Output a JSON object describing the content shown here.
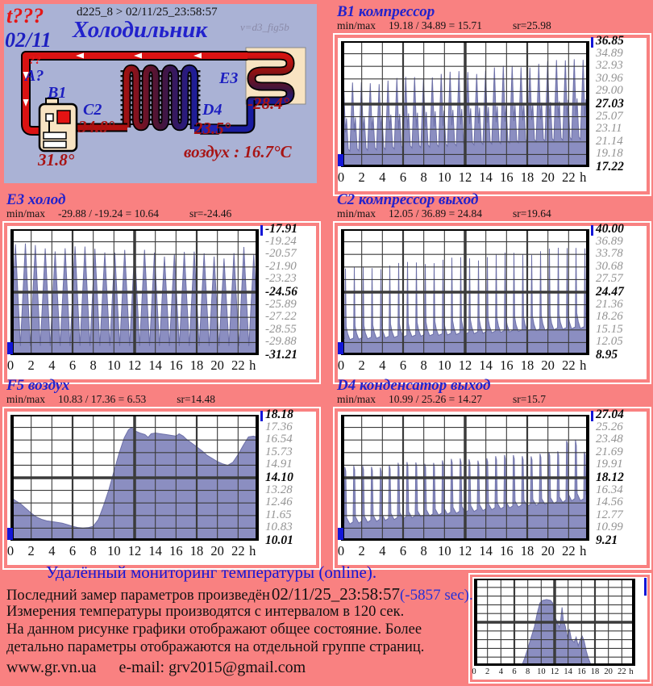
{
  "theme": {
    "page_bg": "#f98181",
    "diagram_bg": "#aab2d5",
    "series_fill": "#8b8ec1",
    "series_stroke": "#6d70a8",
    "grid_color": "#3b3b3b",
    "accent_blue": "#2222cc",
    "marker_blue": "#1316d8",
    "dark_red": "#a81414",
    "bright_red": "#e51717"
  },
  "diagram": {
    "t_query": "t???",
    "date": "02/11",
    "device_line": "d225_8  >  02/11/25_23:58:57",
    "title": "Холодильник",
    "version": "v=d3_fig5b",
    "sensor_q": "??",
    "sensor_a": "A?",
    "b1": "B1",
    "b1_temp": "31.8°",
    "c2": "C2",
    "c2_temp": "34.8°",
    "d4": "D4",
    "d4_temp": "23.5°",
    "e3": "E3",
    "e3_temp": "-28.4°",
    "air": "воздух : 16.7°C"
  },
  "chart_data": [
    {
      "id": "b1",
      "name": "B1 компрессор",
      "minmax_label": "min/max",
      "minmax": "19.18 / 34.89 = 15.71",
      "sr": "sr=25.98",
      "type": "area",
      "xlabel": "h",
      "xlim": [
        0,
        24
      ],
      "ylim": [
        17.22,
        36.85
      ],
      "x_labels": [
        "0",
        "2",
        "4",
        "6",
        "8",
        "10",
        "12",
        "14",
        "16",
        "18",
        "20",
        "22",
        "h"
      ],
      "y_ticks": [
        "36.85",
        "34.89",
        "32.93",
        "30.96",
        "29.00",
        "27.03",
        "25.07",
        "23.11",
        "21.14",
        "19.18",
        "17.22"
      ],
      "stats": {
        "min": 19.18,
        "max": 34.89,
        "diff": 15.71,
        "avg": 25.98
      },
      "series": {
        "mode": "cycles",
        "cycles": 28,
        "base": [
          19.3,
          21.2
        ],
        "peak": [
          30.2,
          34.5
        ],
        "bump": [
          22.6,
          0.6
        ],
        "shape": [
          [
            0,
            0.03
          ],
          [
            0.3,
            1
          ],
          [
            0.5,
            0.3
          ],
          [
            0.62,
            0.5
          ],
          [
            0.82,
            0.06
          ],
          [
            1,
            0.03
          ]
        ]
      }
    },
    {
      "id": "e3",
      "name": "E3 холод",
      "minmax_label": "min/max",
      "minmax": "-29.88 / -19.24 = 10.64",
      "sr": "sr=-24.46",
      "type": "area",
      "xlabel": "h",
      "xlim": [
        0,
        24
      ],
      "ylim": [
        -31.21,
        -17.91
      ],
      "x_labels": [
        "0",
        "2",
        "4",
        "6",
        "8",
        "10",
        "12",
        "14",
        "16",
        "18",
        "20",
        "22",
        "h"
      ],
      "y_ticks": [
        "-17.91",
        "-19.24",
        "-20.57",
        "-21.90",
        "-23.23",
        "-24.56",
        "-25.89",
        "-27.22",
        "-28.55",
        "-29.88",
        "-31.21"
      ],
      "stats": {
        "min": -29.88,
        "max": -19.24,
        "diff": 10.64,
        "avg": -24.46
      },
      "series": {
        "mode": "cycles",
        "cycles": 25,
        "base": [
          -30.25,
          -30.25
        ],
        "peak": [
          -19.35,
          -20.6
        ],
        "bump": [
          22.4,
          0.9
        ],
        "shape": [
          [
            0,
            0
          ],
          [
            0.5,
            1
          ],
          [
            1,
            0
          ]
        ]
      }
    },
    {
      "id": "c2",
      "name": "C2 компрессор выход",
      "minmax_label": "min/max",
      "minmax": "12.05 / 36.89 = 24.84",
      "sr": "sr=19.64",
      "type": "area",
      "xlabel": "h",
      "xlim": [
        0,
        24
      ],
      "ylim": [
        8.95,
        40.0
      ],
      "x_labels": [
        "0",
        "2",
        "4",
        "6",
        "8",
        "10",
        "12",
        "14",
        "16",
        "18",
        "20",
        "22",
        "h"
      ],
      "y_ticks": [
        "40.00",
        "36.89",
        "33.78",
        "30.68",
        "27.57",
        "24.47",
        "21.36",
        "18.26",
        "15.15",
        "12.05",
        "8.95"
      ],
      "stats": {
        "min": 12.05,
        "max": 36.89,
        "diff": 24.84,
        "avg": 19.64
      },
      "series": {
        "mode": "cycles",
        "cycles": 28,
        "base": [
          12.3,
          15.2
        ],
        "peak": [
          30.4,
          36.2
        ],
        "bump": [
          22.7,
          0.7
        ],
        "shape": [
          [
            0,
            0.02
          ],
          [
            0.42,
            0.04
          ],
          [
            0.5,
            1
          ],
          [
            0.58,
            0.2
          ],
          [
            0.75,
            0.1
          ],
          [
            1,
            0.02
          ]
        ]
      }
    },
    {
      "id": "f5",
      "name": "F5 воздух",
      "minmax_label": "min/max",
      "minmax": "10.83 / 17.36 = 6.53",
      "sr": "sr=14.48",
      "type": "area",
      "xlabel": "h",
      "xlim": [
        0,
        24
      ],
      "ylim": [
        10.01,
        18.18
      ],
      "x_labels": [
        "0",
        "2",
        "4",
        "6",
        "8",
        "10",
        "12",
        "14",
        "16",
        "18",
        "20",
        "22",
        "h"
      ],
      "y_ticks": [
        "18.18",
        "17.36",
        "16.54",
        "15.73",
        "14.91",
        "14.10",
        "13.28",
        "12.46",
        "11.65",
        "10.83",
        "10.01"
      ],
      "stats": {
        "min": 10.83,
        "max": 17.36,
        "diff": 6.53,
        "avg": 14.48
      },
      "series": {
        "mode": "points",
        "points": [
          [
            0,
            12.85
          ],
          [
            0.5,
            12.6
          ],
          [
            1,
            12.4
          ],
          [
            1.5,
            12.1
          ],
          [
            2,
            11.8
          ],
          [
            2.5,
            11.55
          ],
          [
            3,
            11.4
          ],
          [
            3.5,
            11.3
          ],
          [
            4,
            11.25
          ],
          [
            4.5,
            11.2
          ],
          [
            5,
            11.15
          ],
          [
            5.5,
            11.05
          ],
          [
            6,
            10.95
          ],
          [
            6.5,
            10.87
          ],
          [
            7,
            10.83
          ],
          [
            7.5,
            10.86
          ],
          [
            8,
            10.95
          ],
          [
            8.5,
            11.4
          ],
          [
            9,
            12.3
          ],
          [
            9.5,
            13.3
          ],
          [
            10,
            14.5
          ],
          [
            10.5,
            15.7
          ],
          [
            11,
            16.7
          ],
          [
            11.4,
            17.2
          ],
          [
            11.7,
            17.36
          ],
          [
            12,
            17.15
          ],
          [
            12.5,
            17.0
          ],
          [
            13,
            16.9
          ],
          [
            13.3,
            16.72
          ],
          [
            13.6,
            16.95
          ],
          [
            14,
            17.0
          ],
          [
            14.5,
            16.95
          ],
          [
            15,
            16.9
          ],
          [
            15.5,
            16.85
          ],
          [
            16,
            16.8
          ],
          [
            16.3,
            16.95
          ],
          [
            16.7,
            16.8
          ],
          [
            17,
            16.6
          ],
          [
            17.5,
            16.35
          ],
          [
            18,
            16.1
          ],
          [
            18.5,
            15.85
          ],
          [
            19,
            15.55
          ],
          [
            19.5,
            15.35
          ],
          [
            20,
            15.15
          ],
          [
            20.5,
            15.0
          ],
          [
            21,
            14.9
          ],
          [
            21.5,
            15.1
          ],
          [
            22,
            15.6
          ],
          [
            22.5,
            16.2
          ],
          [
            23,
            16.75
          ],
          [
            23.5,
            16.8
          ],
          [
            24,
            16.7
          ]
        ]
      }
    },
    {
      "id": "d4",
      "name": "D4 конденсатор выход",
      "minmax_label": "min/max",
      "minmax": "10.99 / 25.26 = 14.27",
      "sr": "sr=15.7",
      "type": "area",
      "xlabel": "h",
      "xlim": [
        0,
        24
      ],
      "ylim": [
        9.21,
        27.04
      ],
      "x_labels": [
        "0",
        "2",
        "4",
        "6",
        "8",
        "10",
        "12",
        "14",
        "16",
        "18",
        "20",
        "22",
        "h"
      ],
      "y_ticks": [
        "27.04",
        "25.26",
        "23.48",
        "21.69",
        "19.91",
        "18.12",
        "16.34",
        "14.56",
        "12.77",
        "10.99",
        "9.21"
      ],
      "stats": {
        "min": 10.99,
        "max": 25.26,
        "diff": 14.27,
        "avg": 15.7
      },
      "series": {
        "mode": "cycles",
        "cycles": 28,
        "base": [
          11.1,
          14.7
        ],
        "peak": [
          19.7,
          22.2
        ],
        "bump": [
          22.3,
          3.1
        ],
        "shape": [
          [
            0,
            0.04
          ],
          [
            0.36,
            0.07
          ],
          [
            0.44,
            1
          ],
          [
            0.54,
            0.93
          ],
          [
            0.63,
            0.15
          ],
          [
            1,
            0.04
          ]
        ]
      }
    },
    {
      "id": "mini",
      "name": "",
      "type": "area",
      "xlabel": "h",
      "xlim": [
        0,
        24
      ],
      "ylim": [
        0,
        1
      ],
      "note": "no y-axis labels; values are relative fractions of plot height",
      "x_labels": [
        "0",
        "2",
        "4",
        "6",
        "8",
        "10",
        "12",
        "14",
        "16",
        "18",
        "20",
        "22",
        "h"
      ],
      "y_ticks": [],
      "series": {
        "mode": "points",
        "points": [
          [
            0,
            0
          ],
          [
            6.8,
            0
          ],
          [
            7.2,
            0.02
          ],
          [
            7.6,
            0.1
          ],
          [
            8,
            0.2
          ],
          [
            8.4,
            0.3
          ],
          [
            9,
            0.45
          ],
          [
            9.4,
            0.6
          ],
          [
            9.8,
            0.72
          ],
          [
            10.2,
            0.75
          ],
          [
            10.8,
            0.76
          ],
          [
            11.4,
            0.75
          ],
          [
            11.7,
            0.72
          ],
          [
            11.9,
            0.62
          ],
          [
            12.1,
            0.55
          ],
          [
            12.4,
            0.5
          ],
          [
            12.7,
            0.44
          ],
          [
            12.9,
            0.52
          ],
          [
            13.1,
            0.67
          ],
          [
            13.3,
            0.52
          ],
          [
            13.6,
            0.45
          ],
          [
            13.9,
            0.33
          ],
          [
            14.2,
            0.42
          ],
          [
            14.5,
            0.3
          ],
          [
            14.9,
            0.27
          ],
          [
            15.2,
            0.33
          ],
          [
            15.5,
            0.23
          ],
          [
            15.8,
            0.3
          ],
          [
            16.1,
            0.34
          ],
          [
            16.4,
            0.28
          ],
          [
            16.7,
            0.17
          ],
          [
            17,
            0.09
          ],
          [
            17.3,
            0.03
          ],
          [
            17.6,
            0
          ],
          [
            24,
            0
          ]
        ]
      }
    }
  ],
  "footer": {
    "heading": "Удалённый мониторинг температуры (online).",
    "line1_prefix": "Последний замер параметров произведён",
    "line1_time": "02/11/25_23:58:57",
    "line1_delay": "(-5857 sec).",
    "line2": "Измерения температуры  производятся с интервалом в 120 сек.",
    "line3": "На данном рисунке графики отображают общее состояние. Более",
    "line4": "детально параметры отображаются на отдельной группе страниц.",
    "site": "www.gr.vn.ua",
    "email": "e-mail: grv2015@gmail.com"
  }
}
